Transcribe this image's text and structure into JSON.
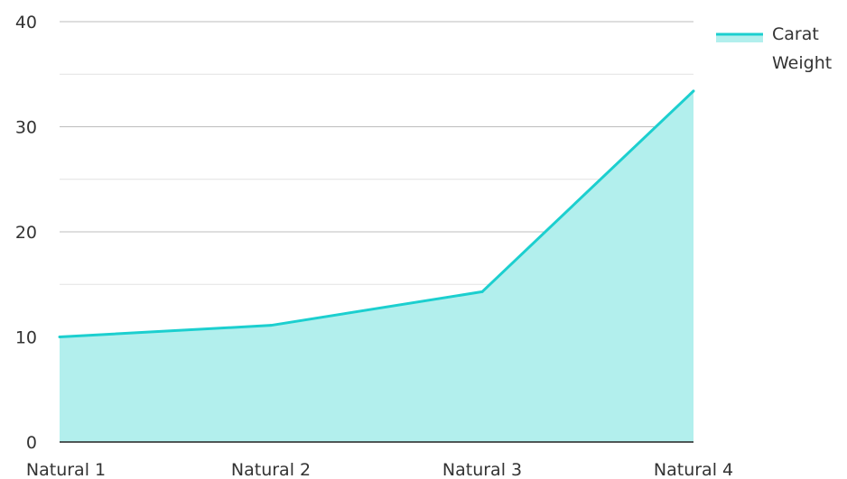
{
  "chart_data": {
    "type": "area",
    "categories": [
      "Natural 1",
      "Natural 2",
      "Natural 3",
      "Natural 4"
    ],
    "series": [
      {
        "name": "Carat Weight",
        "values": [
          10,
          11.1,
          14.3,
          33.4
        ]
      }
    ],
    "ylim": [
      0,
      40
    ],
    "yticks": [
      "0",
      "10",
      "20",
      "30",
      "40"
    ],
    "grid": true,
    "legend": {
      "placement": "top-right",
      "lines": [
        "Carat",
        "Weight"
      ]
    },
    "colors": {
      "line": "#1ccfcf",
      "fill": "#b2efed",
      "grid_major": "#bdbdbd",
      "grid_minor": "#e2e2e2",
      "axis": "#222222"
    }
  }
}
